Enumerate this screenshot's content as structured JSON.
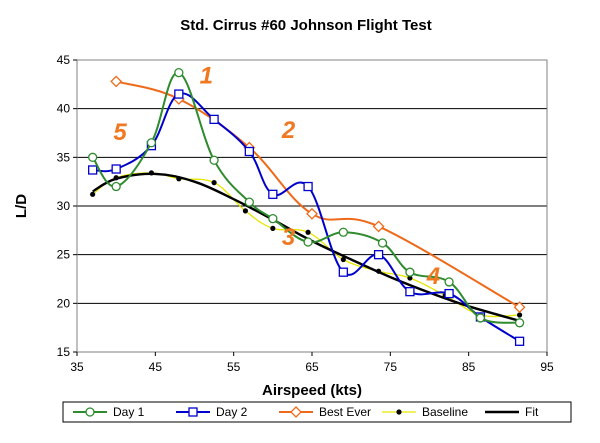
{
  "chart_data": {
    "type": "line",
    "title": "Std. Cirrus #60 Johnson Flight Test",
    "xlabel": "Airspeed (kts)",
    "ylabel": "L/D",
    "xlim": [
      35,
      95
    ],
    "ylim": [
      15,
      45
    ],
    "xticks": [
      35,
      45,
      55,
      65,
      75,
      85,
      95
    ],
    "yticks": [
      15,
      20,
      25,
      30,
      35,
      40,
      45
    ],
    "grid": "horizontal",
    "legend_position": "bottom",
    "series": [
      {
        "name": "Day 1",
        "color": "#2e8b2e",
        "marker": "circle",
        "x": [
          37,
          40,
          44.5,
          48,
          52.5,
          57,
          60,
          64.5,
          69,
          74,
          77.5,
          82.5,
          86.5,
          91.5
        ],
        "y": [
          35,
          32,
          36.5,
          43.7,
          34.7,
          30.4,
          28.7,
          26.3,
          27.3,
          26.2,
          23.2,
          22.2,
          18.5,
          18
        ]
      },
      {
        "name": "Day 2",
        "color": "#0000cc",
        "marker": "square",
        "x": [
          37,
          40,
          44.5,
          48,
          52.5,
          57,
          60,
          64.5,
          69,
          73.5,
          77.5,
          82.5,
          86.5,
          91.5
        ],
        "y": [
          33.7,
          33.8,
          36.2,
          41.5,
          38.9,
          35.6,
          31.2,
          32,
          23.2,
          25,
          21.2,
          21,
          18.6,
          16.1
        ]
      },
      {
        "name": "Best Ever",
        "color": "#ee6a1a",
        "marker": "diamond",
        "x": [
          40,
          48,
          57,
          65,
          73.5,
          91.5
        ],
        "y": [
          42.8,
          41,
          36,
          29.2,
          27.9,
          19.6
        ]
      },
      {
        "name": "Baseline",
        "color": "#e6e600",
        "marker": "dot",
        "x": [
          37,
          40,
          44.5,
          48,
          52.5,
          56.5,
          60,
          64.5,
          69,
          73.5,
          77.5,
          82,
          86.5,
          91.5
        ],
        "y": [
          31.2,
          32.9,
          33.4,
          32.8,
          32.4,
          29.5,
          27.7,
          27.3,
          24.5,
          23.3,
          22.6,
          20.8,
          18.8,
          18.8
        ]
      },
      {
        "name": "Fit",
        "color": "#000000",
        "marker": "none",
        "x": [
          37,
          40,
          45,
          50,
          55,
          60,
          65,
          70,
          75,
          80,
          85,
          91.5
        ],
        "y": [
          31.5,
          32.8,
          33.3,
          32.5,
          30.7,
          28.6,
          26.4,
          24.5,
          22.7,
          21.1,
          19.7,
          18.2
        ]
      }
    ],
    "annotations": [
      {
        "text": "1",
        "x": 51.5,
        "y": 43.4,
        "color": "#f07820"
      },
      {
        "text": "2",
        "x": 62,
        "y": 37.8,
        "color": "#f07820"
      },
      {
        "text": "3",
        "x": 62,
        "y": 26.8,
        "color": "#f07820"
      },
      {
        "text": "4",
        "x": 80.5,
        "y": 22.8,
        "color": "#f07820"
      },
      {
        "text": "5",
        "x": 40.5,
        "y": 37.6,
        "color": "#f07820"
      }
    ]
  }
}
